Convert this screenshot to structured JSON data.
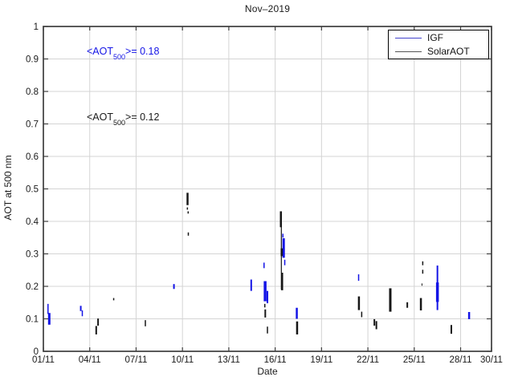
{
  "title": "Nov–2019",
  "axes": {
    "xlabel": "Date",
    "ylabel": "AOT at 500 nm"
  },
  "annotations": {
    "igf": {
      "pre": "<AOT",
      "sub": "500",
      "post": ">= 0.18",
      "color": "#1414e6"
    },
    "solar": {
      "pre": "<AOT",
      "sub": "500",
      "post": ">= 0.12",
      "color": "#1a1a1a"
    }
  },
  "legend": {
    "entries": [
      {
        "label": "IGF",
        "line_color": "#4444cc"
      },
      {
        "label": "SolarAOT",
        "line_color": "#555555"
      }
    ]
  },
  "colors": {
    "grid": "#d4d4d4",
    "axis": "#3d3d3d",
    "tick_text": "#1a1a1a"
  },
  "chart_data": {
    "type": "scatter",
    "title": "Nov-2019",
    "xlabel": "Date",
    "ylabel": "AOT at 500 nm",
    "x_unit": "day of November 2019",
    "xlim_days": [
      1,
      30
    ],
    "ylim": [
      0,
      1
    ],
    "grid": true,
    "legend_position": "top-right",
    "xticks": [
      {
        "day": 1,
        "label": "01/11"
      },
      {
        "day": 4,
        "label": "04/11"
      },
      {
        "day": 7,
        "label": "07/11"
      },
      {
        "day": 10,
        "label": "10/11"
      },
      {
        "day": 13,
        "label": "13/11"
      },
      {
        "day": 16,
        "label": "16/11"
      },
      {
        "day": 19,
        "label": "19/11"
      },
      {
        "day": 22,
        "label": "22/11"
      },
      {
        "day": 25,
        "label": "25/11"
      },
      {
        "day": 28,
        "label": "28/11"
      },
      {
        "day": 30,
        "label": "30/11"
      }
    ],
    "yticks": [
      {
        "v": 0,
        "label": "0"
      },
      {
        "v": 0.1,
        "label": "0.1"
      },
      {
        "v": 0.2,
        "label": "0.2"
      },
      {
        "v": 0.3,
        "label": "0.3"
      },
      {
        "v": 0.4,
        "label": "0.4"
      },
      {
        "v": 0.5,
        "label": "0.5"
      },
      {
        "v": 0.6,
        "label": "0.6"
      },
      {
        "v": 0.7,
        "label": "0.7"
      },
      {
        "v": 0.8,
        "label": "0.8"
      },
      {
        "v": 0.9,
        "label": "0.9"
      },
      {
        "v": 1,
        "label": "1"
      }
    ],
    "segment_format": "[day, aot_min, aot_max, stroke_width_px] — dense vertical point clusters",
    "series": [
      {
        "name": "IGF",
        "color": "#1414e6",
        "mean_aot_500": 0.18,
        "segments": [
          [
            1.3,
            0.115,
            0.146,
            1.5
          ],
          [
            1.38,
            0.082,
            0.118,
            3
          ],
          [
            3.42,
            0.124,
            0.14,
            2
          ],
          [
            3.52,
            0.108,
            0.126,
            1.5
          ],
          [
            9.45,
            0.192,
            0.207,
            2
          ],
          [
            14.45,
            0.186,
            0.221,
            2
          ],
          [
            15.28,
            0.256,
            0.273,
            1.5
          ],
          [
            15.35,
            0.154,
            0.216,
            3.5
          ],
          [
            15.5,
            0.148,
            0.186,
            2
          ],
          [
            16.5,
            0.35,
            0.362,
            1.5
          ],
          [
            16.55,
            0.288,
            0.348,
            3
          ],
          [
            16.62,
            0.265,
            0.282,
            1.5
          ],
          [
            17.4,
            0.1,
            0.134,
            2.5
          ],
          [
            21.4,
            0.217,
            0.237,
            1.5
          ],
          [
            26.5,
            0.127,
            0.264,
            2
          ],
          [
            26.5,
            0.152,
            0.212,
            3.5
          ],
          [
            28.55,
            0.099,
            0.121,
            2.5
          ]
        ]
      },
      {
        "name": "SolarAOT",
        "color": "#161616",
        "mean_aot_500": 0.12,
        "segments": [
          [
            4.42,
            0.052,
            0.078,
            2
          ],
          [
            4.54,
            0.079,
            0.101,
            2
          ],
          [
            5.55,
            0.157,
            0.164,
            1.5
          ],
          [
            7.6,
            0.077,
            0.096,
            1.5
          ],
          [
            10.33,
            0.45,
            0.488,
            2.5
          ],
          [
            10.32,
            0.436,
            0.443,
            1.5
          ],
          [
            10.37,
            0.424,
            0.431,
            1.5
          ],
          [
            10.38,
            0.356,
            0.366,
            1.5
          ],
          [
            15.33,
            0.135,
            0.146,
            1.5
          ],
          [
            15.36,
            0.104,
            0.129,
            2
          ],
          [
            15.5,
            0.055,
            0.076,
            1.5
          ],
          [
            16.4,
            0.19,
            0.43,
            1.2
          ],
          [
            16.37,
            0.382,
            0.431,
            2.5
          ],
          [
            16.42,
            0.293,
            0.317,
            2.5
          ],
          [
            16.45,
            0.188,
            0.242,
            2.5
          ],
          [
            17.42,
            0.052,
            0.092,
            2.5
          ],
          [
            21.42,
            0.127,
            0.169,
            2.5
          ],
          [
            21.6,
            0.105,
            0.122,
            1.5
          ],
          [
            22.42,
            0.079,
            0.099,
            2
          ],
          [
            22.55,
            0.068,
            0.093,
            2
          ],
          [
            23.45,
            0.122,
            0.194,
            3
          ],
          [
            24.55,
            0.134,
            0.151,
            2
          ],
          [
            25.43,
            0.126,
            0.164,
            2.5
          ],
          [
            25.55,
            0.265,
            0.277,
            1.5
          ],
          [
            25.55,
            0.239,
            0.251,
            1.5
          ],
          [
            25.5,
            0.202,
            0.209,
            1
          ],
          [
            27.4,
            0.054,
            0.081,
            2
          ]
        ]
      }
    ]
  }
}
